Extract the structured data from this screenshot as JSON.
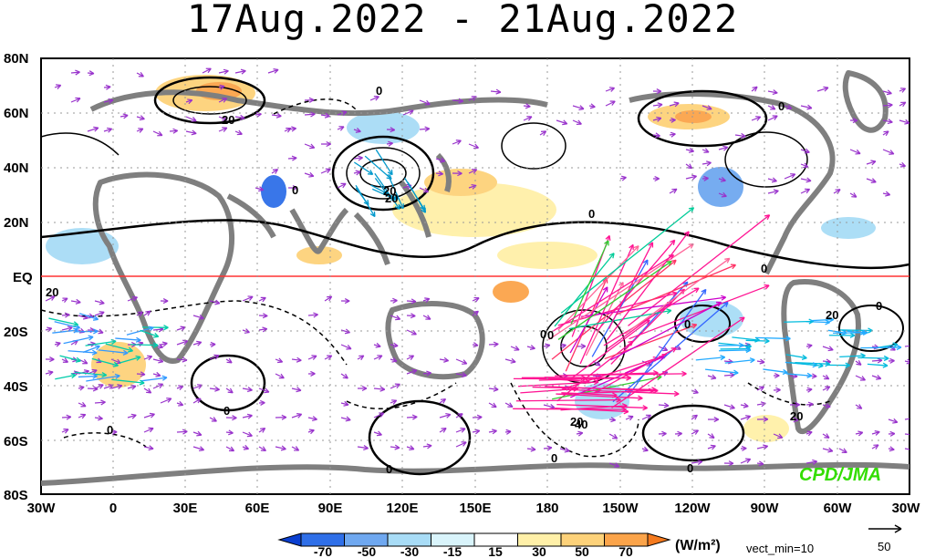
{
  "title": "17Aug.2022 - 21Aug.2022",
  "lat_labels": [
    "80N",
    "60N",
    "40N",
    "20N",
    "EQ",
    "20S",
    "40S",
    "60S",
    "80S"
  ],
  "lon_labels": [
    "30W",
    "0",
    "30E",
    "60E",
    "90E",
    "120E",
    "150E",
    "180",
    "150W",
    "120W",
    "90W",
    "60W",
    "30W"
  ],
  "colorbar": {
    "ticks": [
      "-70",
      "-50",
      "-30",
      "-15",
      "15",
      "30",
      "50",
      "70"
    ],
    "colors": [
      "#0a3fd0",
      "#2f6fe8",
      "#6fa8f0",
      "#a8dcf6",
      "#d9f4fb",
      "#ffffff",
      "#fff0a8",
      "#fdd27a",
      "#fba44a",
      "#f57a1e"
    ]
  },
  "units_label": "(W/m²)",
  "vect_min_label": "vect_min=10",
  "reference_vector_label": "50",
  "credit": "CPD/JMA",
  "contour_labels": [
    "0",
    "20",
    "0",
    "20",
    "0",
    "0",
    "20",
    "0",
    "0",
    "0",
    "0",
    "20",
    "0",
    "0",
    "0",
    "40",
    "20",
    "20",
    "0",
    "0",
    "0",
    "20"
  ],
  "colors": {
    "land": "#7f7f7f",
    "equator": "#ff3333",
    "vector_primary": "#9933cc",
    "vector_strong": "#ff1493"
  }
}
